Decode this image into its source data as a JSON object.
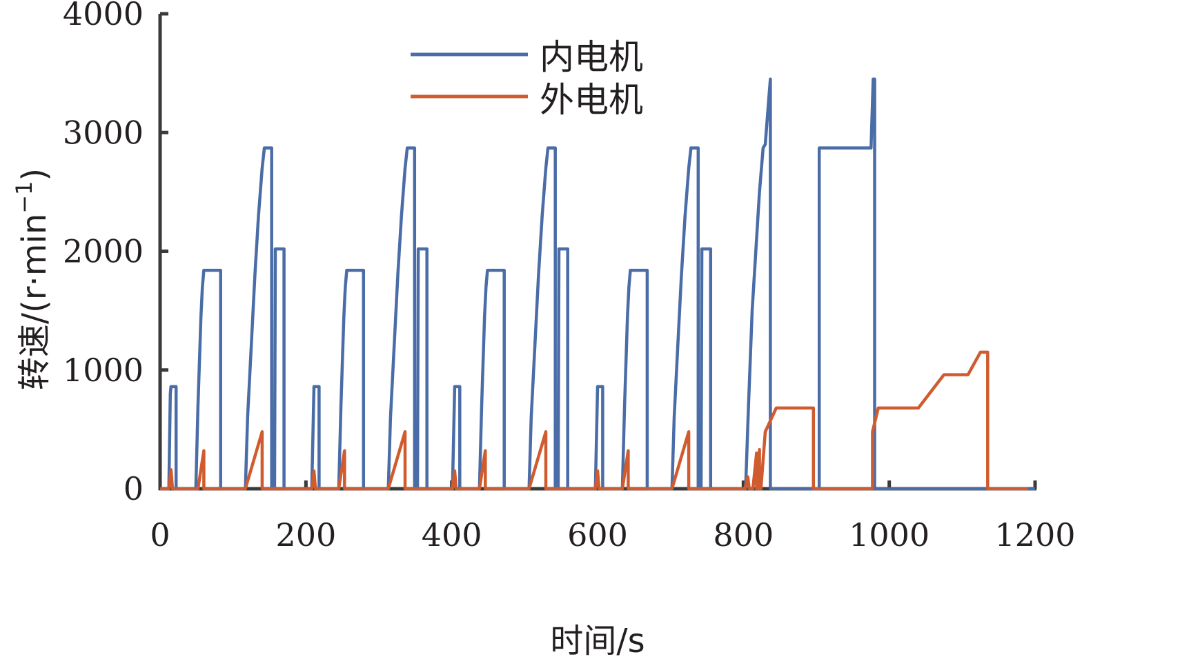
{
  "chart_data": {
    "type": "line",
    "xlabel": "时间/s",
    "ylabel": "转速/(r·min",
    "ylabel_sup": "−1",
    "ylabel_close": ")",
    "xlim": [
      0,
      1200
    ],
    "ylim": [
      0,
      4000
    ],
    "xticks": [
      0,
      200,
      400,
      600,
      800,
      1000,
      1200
    ],
    "yticks": [
      0,
      1000,
      2000,
      3000,
      4000
    ],
    "grid": false,
    "legend_position": "top-center",
    "colors": {
      "axis": "#3b3a38",
      "inner": "#4a6da7",
      "outer": "#cf5b2f"
    },
    "series": [
      {
        "name": "内电机",
        "points": [
          [
            0,
            0
          ],
          [
            12,
            0
          ],
          [
            14,
            800
          ],
          [
            15,
            860
          ],
          [
            22,
            860
          ],
          [
            22,
            0
          ],
          [
            49,
            0
          ],
          [
            52,
            700
          ],
          [
            56,
            1450
          ],
          [
            58,
            1700
          ],
          [
            60,
            1840
          ],
          [
            83,
            1840
          ],
          [
            83,
            0
          ],
          [
            117,
            0
          ],
          [
            120,
            600
          ],
          [
            125,
            1200
          ],
          [
            130,
            1800
          ],
          [
            135,
            2300
          ],
          [
            140,
            2700
          ],
          [
            143,
            2870
          ],
          [
            153,
            2870
          ],
          [
            153,
            0
          ],
          [
            157,
            0
          ],
          [
            158,
            2020
          ],
          [
            170,
            2020
          ],
          [
            170,
            0
          ],
          [
            208,
            0
          ],
          [
            211,
            860
          ],
          [
            218,
            860
          ],
          [
            218,
            0
          ],
          [
            245,
            0
          ],
          [
            248,
            700
          ],
          [
            252,
            1450
          ],
          [
            254,
            1700
          ],
          [
            256,
            1840
          ],
          [
            279,
            1840
          ],
          [
            279,
            0
          ],
          [
            313,
            0
          ],
          [
            316,
            600
          ],
          [
            321,
            1200
          ],
          [
            326,
            1800
          ],
          [
            331,
            2300
          ],
          [
            336,
            2700
          ],
          [
            339,
            2870
          ],
          [
            349,
            2870
          ],
          [
            349,
            0
          ],
          [
            353,
            0
          ],
          [
            354,
            2020
          ],
          [
            366,
            2020
          ],
          [
            366,
            0
          ],
          [
            401,
            0
          ],
          [
            404,
            860
          ],
          [
            411,
            860
          ],
          [
            411,
            0
          ],
          [
            438,
            0
          ],
          [
            441,
            700
          ],
          [
            445,
            1450
          ],
          [
            447,
            1700
          ],
          [
            449,
            1840
          ],
          [
            472,
            1840
          ],
          [
            472,
            0
          ],
          [
            506,
            0
          ],
          [
            509,
            600
          ],
          [
            514,
            1200
          ],
          [
            519,
            1800
          ],
          [
            524,
            2300
          ],
          [
            529,
            2700
          ],
          [
            532,
            2870
          ],
          [
            542,
            2870
          ],
          [
            542,
            0
          ],
          [
            546,
            0
          ],
          [
            547,
            2020
          ],
          [
            559,
            2020
          ],
          [
            559,
            0
          ],
          [
            597,
            0
          ],
          [
            600,
            860
          ],
          [
            607,
            860
          ],
          [
            607,
            0
          ],
          [
            634,
            0
          ],
          [
            637,
            700
          ],
          [
            641,
            1450
          ],
          [
            643,
            1700
          ],
          [
            645,
            1840
          ],
          [
            668,
            1840
          ],
          [
            668,
            0
          ],
          [
            702,
            0
          ],
          [
            705,
            600
          ],
          [
            710,
            1200
          ],
          [
            715,
            1800
          ],
          [
            720,
            2300
          ],
          [
            725,
            2700
          ],
          [
            728,
            2870
          ],
          [
            738,
            2870
          ],
          [
            738,
            0
          ],
          [
            742,
            0
          ],
          [
            743,
            2020
          ],
          [
            755,
            2020
          ],
          [
            755,
            0
          ],
          [
            803,
            0
          ],
          [
            807,
            700
          ],
          [
            812,
            1500
          ],
          [
            817,
            2000
          ],
          [
            822,
            2500
          ],
          [
            827,
            2870
          ],
          [
            830,
            2900
          ],
          [
            835,
            3300
          ],
          [
            837,
            3450
          ],
          [
            837,
            0
          ],
          [
            904,
            0
          ],
          [
            904,
            2870
          ],
          [
            975,
            2870
          ],
          [
            978,
            3450
          ],
          [
            980,
            3450
          ],
          [
            980,
            0
          ],
          [
            1200,
            0
          ]
        ]
      },
      {
        "name": "外电机",
        "points": [
          [
            0,
            0
          ],
          [
            12,
            0
          ],
          [
            15,
            160
          ],
          [
            17,
            0
          ],
          [
            52,
            0
          ],
          [
            60,
            320
          ],
          [
            60,
            0
          ],
          [
            117,
            0
          ],
          [
            140,
            480
          ],
          [
            140,
            0
          ],
          [
            208,
            0
          ],
          [
            211,
            150
          ],
          [
            213,
            0
          ],
          [
            245,
            0
          ],
          [
            253,
            320
          ],
          [
            253,
            0
          ],
          [
            313,
            0
          ],
          [
            336,
            480
          ],
          [
            336,
            0
          ],
          [
            401,
            0
          ],
          [
            404,
            150
          ],
          [
            406,
            0
          ],
          [
            438,
            0
          ],
          [
            446,
            320
          ],
          [
            446,
            0
          ],
          [
            506,
            0
          ],
          [
            529,
            480
          ],
          [
            529,
            0
          ],
          [
            597,
            0
          ],
          [
            600,
            150
          ],
          [
            602,
            0
          ],
          [
            634,
            0
          ],
          [
            642,
            320
          ],
          [
            642,
            0
          ],
          [
            702,
            0
          ],
          [
            725,
            480
          ],
          [
            725,
            0
          ],
          [
            802,
            0
          ],
          [
            806,
            100
          ],
          [
            808,
            0
          ],
          [
            813,
            0
          ],
          [
            818,
            300
          ],
          [
            818,
            0
          ],
          [
            820,
            0
          ],
          [
            822,
            330
          ],
          [
            822,
            0
          ],
          [
            824,
            0
          ],
          [
            830,
            480
          ],
          [
            845,
            680
          ],
          [
            896,
            680
          ],
          [
            896,
            0
          ],
          [
            977,
            0
          ],
          [
            977,
            480
          ],
          [
            985,
            680
          ],
          [
            1040,
            680
          ],
          [
            1075,
            960
          ],
          [
            1108,
            960
          ],
          [
            1125,
            1150
          ],
          [
            1135,
            1150
          ],
          [
            1135,
            0
          ],
          [
            1190,
            0
          ]
        ]
      }
    ]
  }
}
